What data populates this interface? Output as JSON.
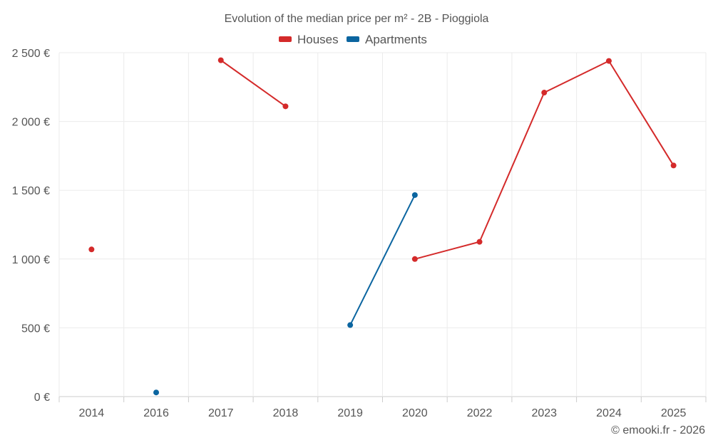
{
  "chart_data": {
    "type": "line",
    "title": "Evolution of the median price per m² - 2B - Pioggiola",
    "categories": [
      "2014",
      "2016",
      "2017",
      "2018",
      "2019",
      "2020",
      "2022",
      "2023",
      "2024",
      "2025"
    ],
    "series": [
      {
        "name": "Houses",
        "color": "#d42a2a",
        "values": [
          1070,
          null,
          2445,
          2110,
          null,
          1000,
          1125,
          2210,
          2440,
          1680
        ]
      },
      {
        "name": "Apartments",
        "color": "#0b65a0",
        "values": [
          null,
          30,
          null,
          null,
          520,
          1465,
          null,
          null,
          null,
          null
        ]
      }
    ],
    "yticks": [
      "0 €",
      "500 €",
      "1 000 €",
      "1 500 €",
      "2 000 €",
      "2 500 €"
    ],
    "ytick_values": [
      0,
      500,
      1000,
      1500,
      2000,
      2500
    ],
    "ylim": [
      0,
      2500
    ],
    "xlabel": "",
    "ylabel": "",
    "grid": true,
    "legend_position": "top-center"
  },
  "credit": "© emooki.fr - 2026"
}
